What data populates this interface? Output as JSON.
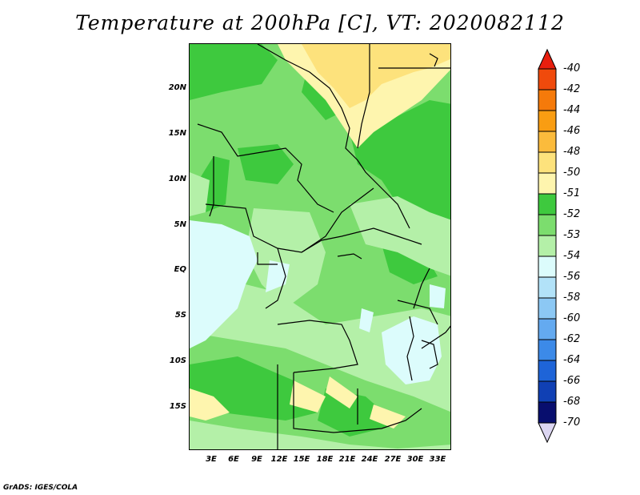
{
  "title": "Temperature at 200hPa [C], VT: 2020082112",
  "credit": "GrADS: IGES/COLA",
  "lat_labels": [
    "20N",
    "15N",
    "10N",
    "5N",
    "EQ",
    "5S",
    "10S",
    "15S"
  ],
  "lon_labels": [
    "3E",
    "6E",
    "9E",
    "12E",
    "15E",
    "18E",
    "21E",
    "24E",
    "27E",
    "30E",
    "33E"
  ],
  "colorbar": {
    "labels": [
      "-40",
      "-42",
      "-44",
      "-46",
      "-48",
      "-50",
      "-51",
      "-52",
      "-53",
      "-54",
      "-56",
      "-58",
      "-60",
      "-62",
      "-64",
      "-66",
      "-68",
      "-70"
    ],
    "colors": [
      "#e81e0e",
      "#f04a0c",
      "#f57a0a",
      "#f99d12",
      "#fbbb3c",
      "#fde27c",
      "#fef5ae",
      "#3ec93e",
      "#7cdd6e",
      "#b4f0a8",
      "#dcfcfc",
      "#b2e2f8",
      "#8cc8f4",
      "#64aaf0",
      "#3c8ae8",
      "#1e64d8",
      "#1040b4",
      "#080e6e",
      "#dcd6f2"
    ]
  },
  "map_colors": {
    "c_minus51": "#fef5ae",
    "c_minus50": "#fde27c",
    "c_minus52": "#3ec93e",
    "c_minus53": "#7cdd6e",
    "c_minus54": "#b4f0a8",
    "c_minus56": "#dcfcfc"
  }
}
